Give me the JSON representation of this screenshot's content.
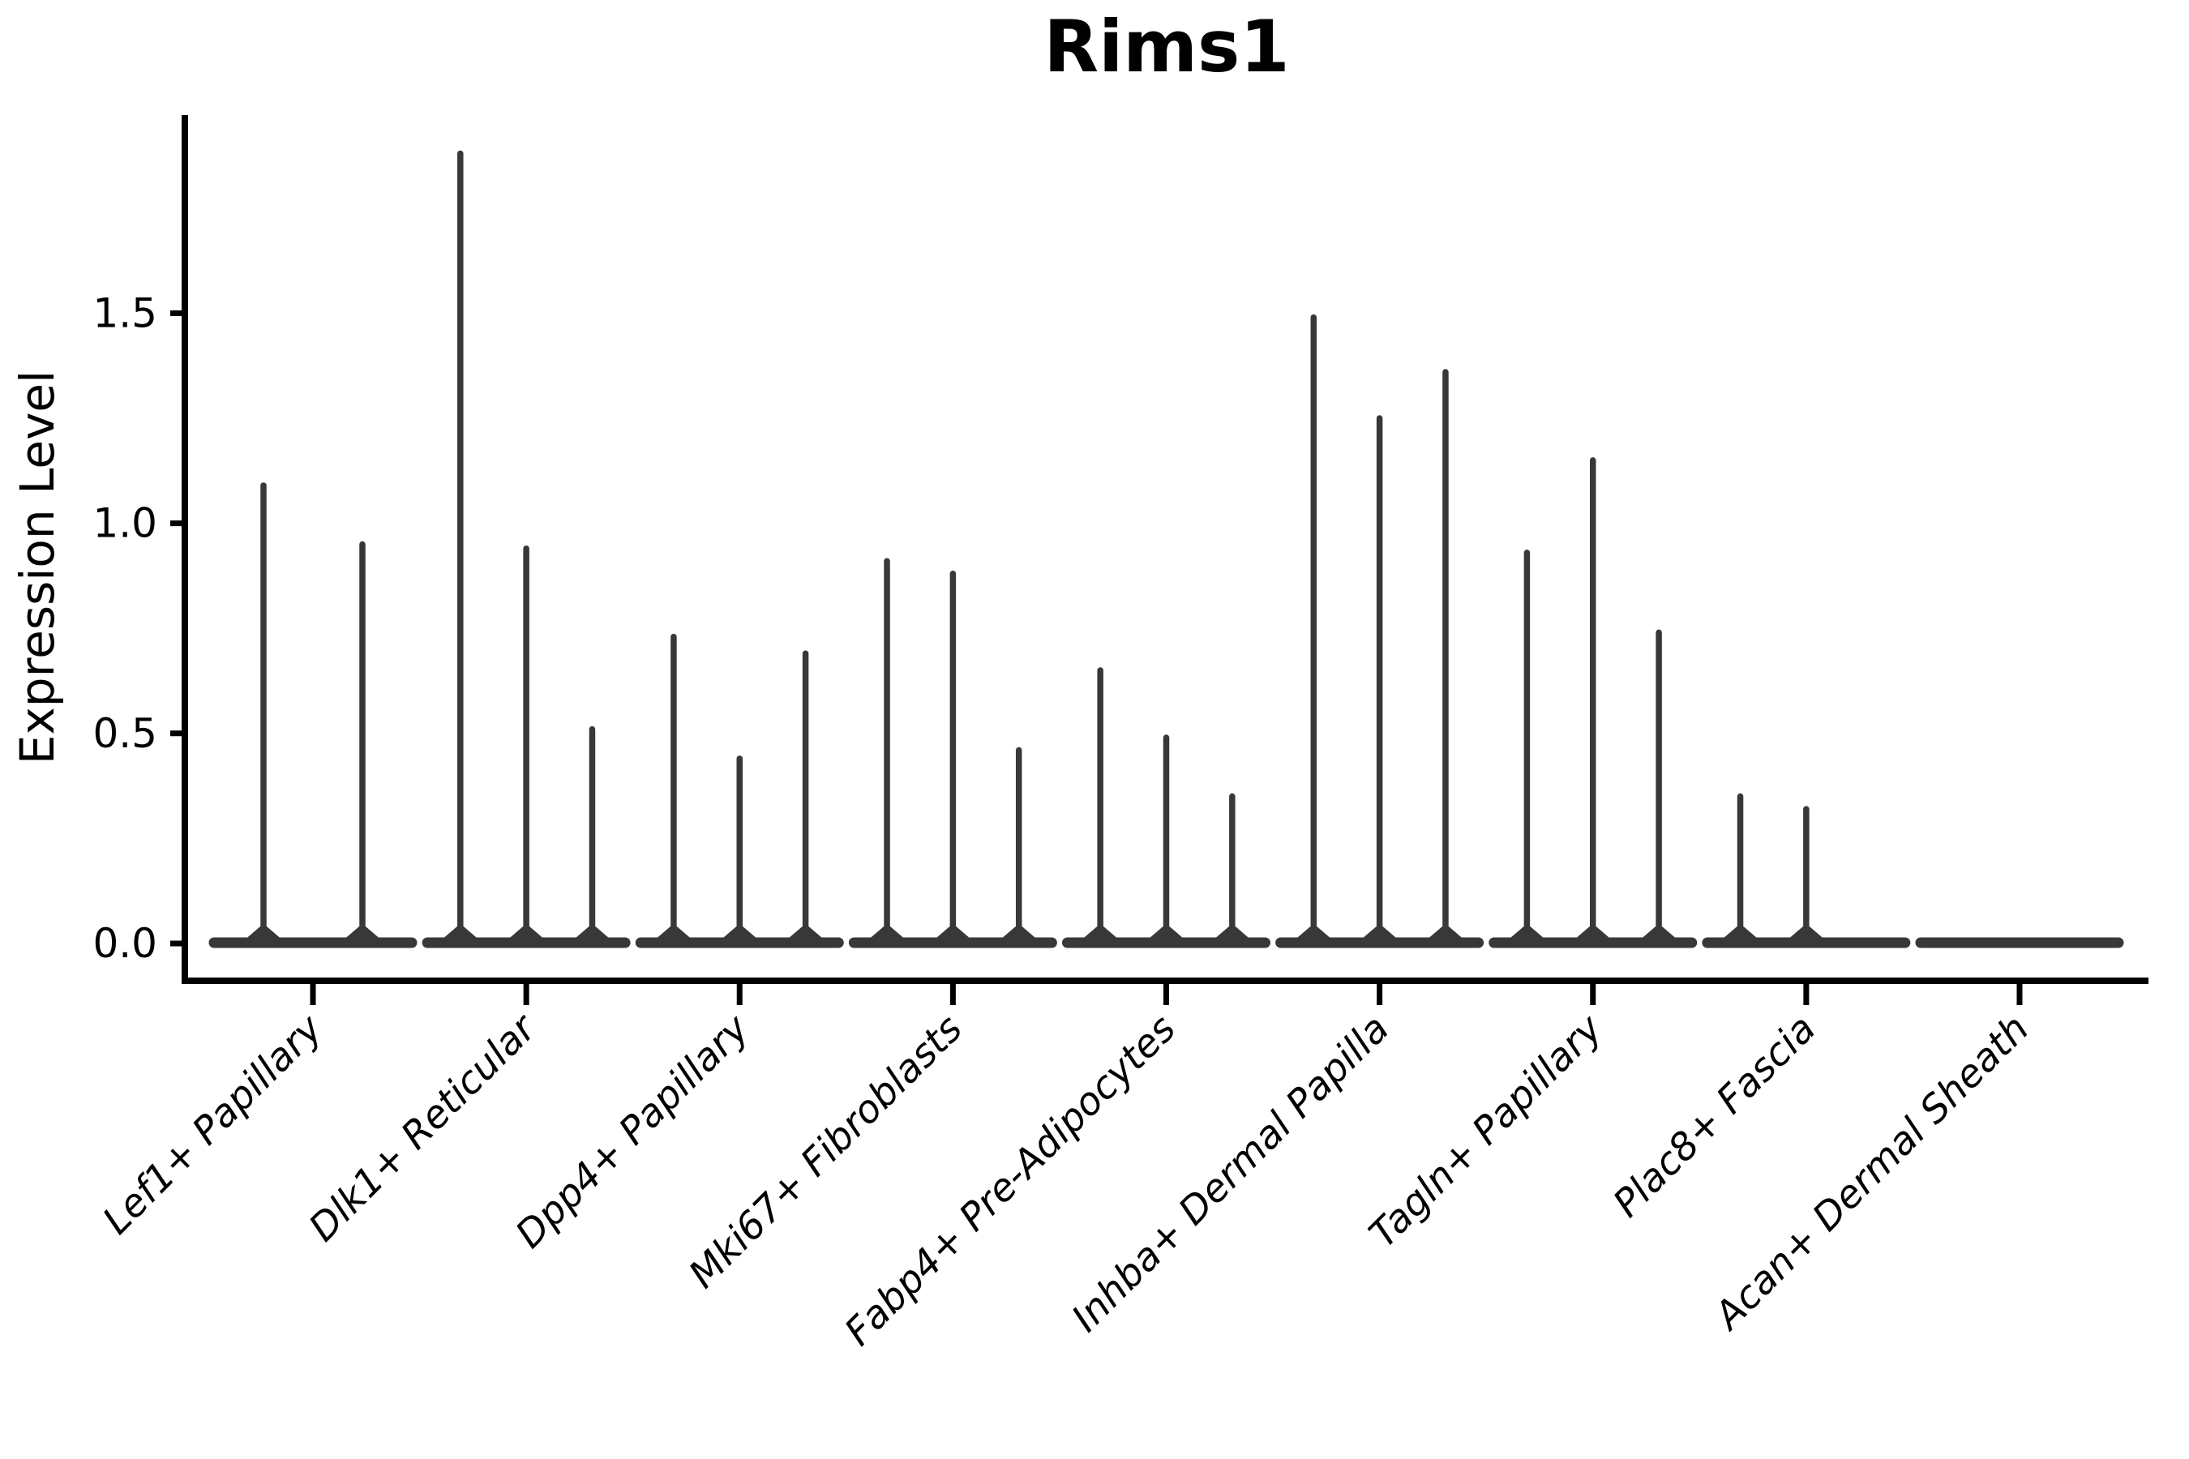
{
  "chart_data": {
    "type": "violin",
    "title": "Rims1",
    "ylabel": "Expression Level",
    "xlabel": "",
    "grid": false,
    "legend": "none",
    "ylim": [
      -0.09,
      1.97
    ],
    "yticks": [
      0.0,
      0.5,
      1.0,
      1.5
    ],
    "ytick_labels": [
      "0.0",
      "0.5",
      "1.0",
      "1.5"
    ],
    "categories": [
      "Lef1+ Papillary",
      "Dlk1+ Reticular",
      "Dpp4+ Papillary",
      "Mki67+ Fibroblasts",
      "Fabp4+ Pre-Adipocytes",
      "Inhba+ Dermal Papilla",
      "Tagln+ Papillary",
      "Plac8+ Fascia",
      "Acan+ Dermal Sheath"
    ],
    "groups": [
      {
        "label": "Lef1+ Papillary",
        "violin_max_values": [
          1.09,
          0.95
        ]
      },
      {
        "label": "Dlk1+ Reticular",
        "violin_max_values": [
          1.88,
          0.94,
          0.51
        ]
      },
      {
        "label": "Dpp4+ Papillary",
        "violin_max_values": [
          0.73,
          0.44,
          0.69
        ]
      },
      {
        "label": "Mki67+ Fibroblasts",
        "violin_max_values": [
          0.91,
          0.88,
          0.46
        ]
      },
      {
        "label": "Fabp4+ Pre-Adipocytes",
        "violin_max_values": [
          0.65,
          0.49,
          0.35
        ]
      },
      {
        "label": "Inhba+ Dermal Papilla",
        "violin_max_values": [
          1.49,
          1.25,
          1.36
        ]
      },
      {
        "label": "Tagln+ Papillary",
        "violin_max_values": [
          0.93,
          1.15,
          0.74
        ]
      },
      {
        "label": "Plac8+ Fascia",
        "violin_max_values": [
          0.35,
          0.32,
          0.0
        ]
      },
      {
        "label": "Acan+ Dermal Sheath",
        "violin_max_values": [
          0.0,
          0.0,
          0.0
        ]
      }
    ],
    "violin_note": "violins are near-zero-width spikes; bulk of each distribution sits at 0",
    "ink_color": "#383838",
    "axis_color": "#000000",
    "background_color": "#ffffff"
  }
}
